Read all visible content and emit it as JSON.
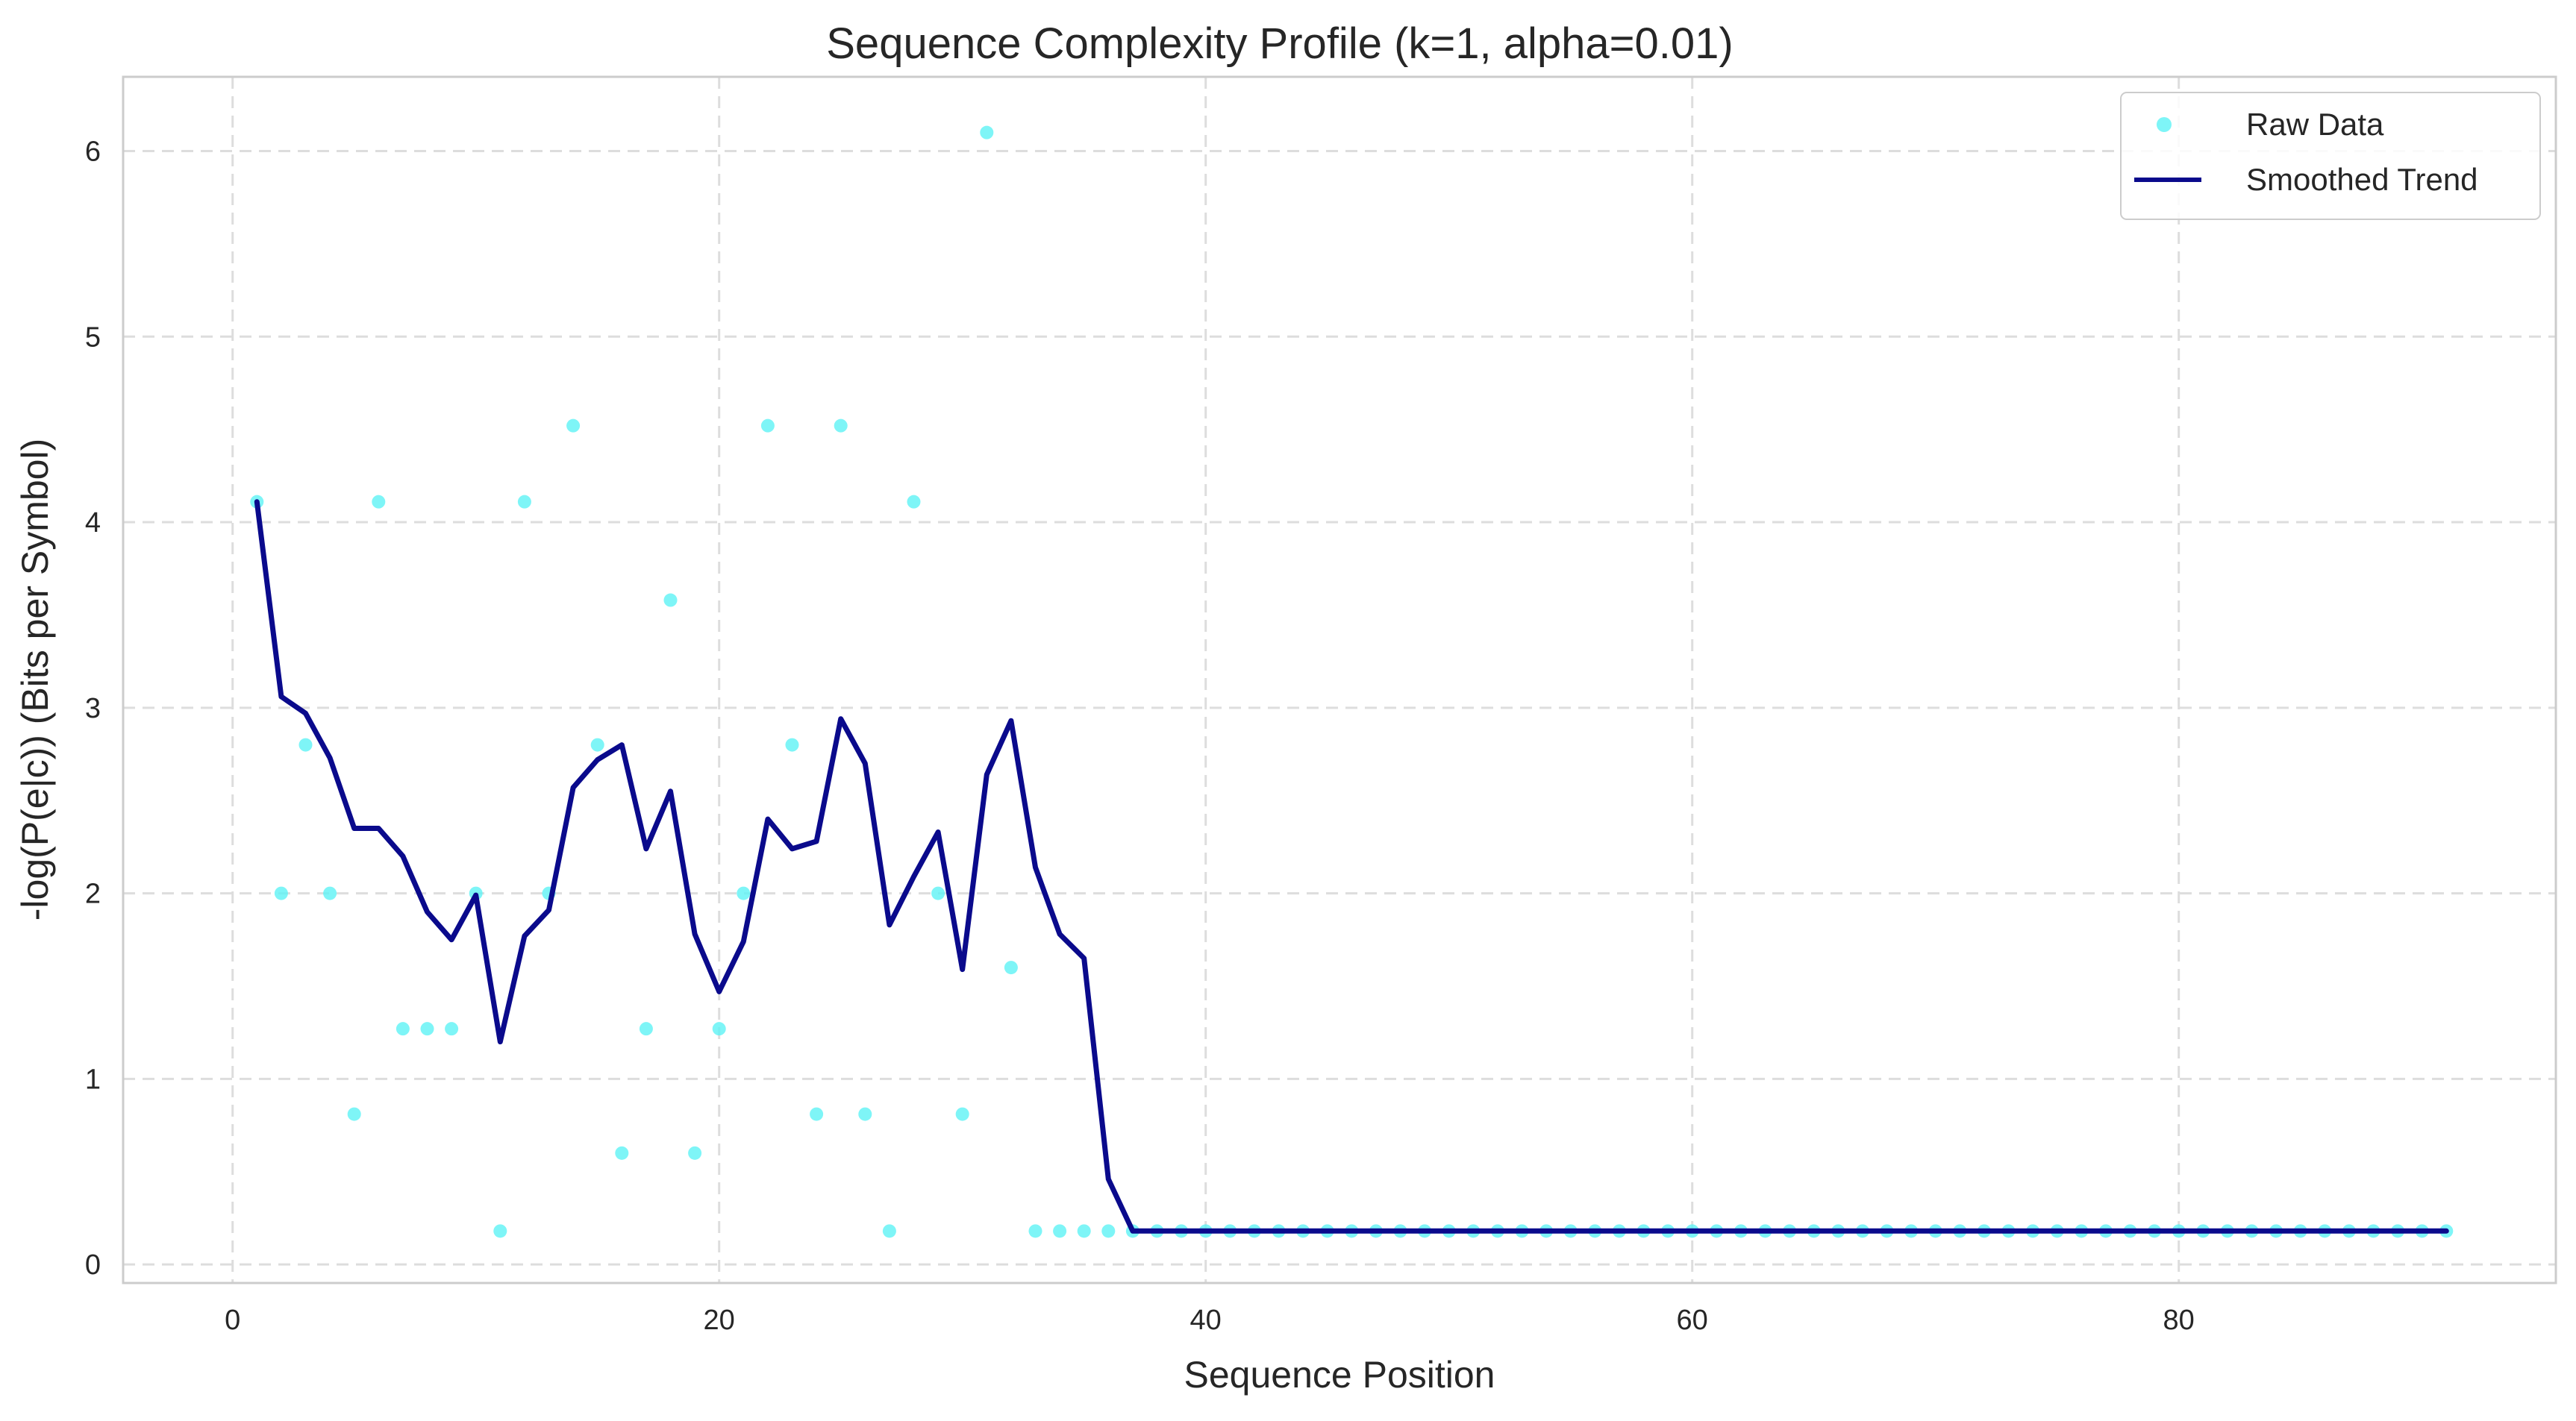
{
  "chart_data": {
    "type": "scatter",
    "title": "Sequence Complexity Profile (k=1, alpha=0.01)",
    "xlabel": "Sequence Position",
    "ylabel": "-log(P(e|c)) (Bits per Symbol)",
    "xlim": [
      -4.5,
      95.5
    ],
    "ylim": [
      -0.1,
      6.4
    ],
    "xticks": [
      0,
      20,
      40,
      60,
      80
    ],
    "yticks": [
      0,
      1,
      2,
      3,
      4,
      5,
      6
    ],
    "grid": true,
    "legend_position": "top-right",
    "colors": {
      "raw": "#5ef3f5",
      "smooth": "#0a0a8c",
      "grid": "#dddddd",
      "frame": "#cccccc"
    },
    "series": [
      {
        "name": "Raw Data",
        "kind": "scatter",
        "x": [
          1,
          2,
          3,
          4,
          5,
          6,
          7,
          8,
          9,
          10,
          11,
          12,
          13,
          14,
          15,
          16,
          17,
          18,
          19,
          20,
          21,
          22,
          23,
          24,
          25,
          26,
          27,
          28,
          29,
          30,
          31,
          32,
          33,
          34,
          35,
          36,
          37,
          38,
          39,
          40,
          41,
          42,
          43,
          44,
          45,
          46,
          47,
          48,
          49,
          50,
          51,
          52,
          53,
          54,
          55,
          56,
          57,
          58,
          59,
          60,
          61,
          62,
          63,
          64,
          65,
          66,
          67,
          68,
          69,
          70,
          71,
          72,
          73,
          74,
          75,
          76,
          77,
          78,
          79,
          80,
          81,
          82,
          83,
          84,
          85,
          86,
          87,
          88,
          89,
          90,
          91
        ],
        "y": [
          4.11,
          2.0,
          2.8,
          2.0,
          0.81,
          4.11,
          1.27,
          1.27,
          1.27,
          2.0,
          0.18,
          4.11,
          2.0,
          4.52,
          2.8,
          0.6,
          1.27,
          3.58,
          0.6,
          1.27,
          2.0,
          4.52,
          2.8,
          0.81,
          4.52,
          0.81,
          0.18,
          4.11,
          2.0,
          0.81,
          6.1,
          1.6,
          0.18,
          0.18,
          0.18,
          0.18,
          0.18,
          0.18,
          0.18,
          0.18,
          0.18,
          0.18,
          0.18,
          0.18,
          0.18,
          0.18,
          0.18,
          0.18,
          0.18,
          0.18,
          0.18,
          0.18,
          0.18,
          0.18,
          0.18,
          0.18,
          0.18,
          0.18,
          0.18,
          0.18,
          0.18,
          0.18,
          0.18,
          0.18,
          0.18,
          0.18,
          0.18,
          0.18,
          0.18,
          0.18,
          0.18,
          0.18,
          0.18,
          0.18,
          0.18,
          0.18,
          0.18,
          0.18,
          0.18,
          0.18,
          0.18,
          0.18,
          0.18,
          0.18,
          0.18,
          0.18,
          0.18,
          0.18,
          0.18,
          0.18,
          0.18
        ]
      },
      {
        "name": "Smoothed Trend",
        "kind": "line",
        "x": [
          1,
          2,
          3,
          4,
          5,
          6,
          7,
          8,
          9,
          10,
          11,
          12,
          13,
          14,
          15,
          16,
          17,
          18,
          19,
          20,
          21,
          22,
          23,
          24,
          25,
          26,
          27,
          28,
          29,
          30,
          31,
          32,
          33,
          34,
          35,
          36,
          37,
          38,
          39,
          40,
          41,
          42,
          43,
          44,
          45,
          46,
          47,
          48,
          49,
          50,
          51,
          52,
          53,
          54,
          55,
          56,
          57,
          58,
          59,
          60,
          61,
          62,
          63,
          64,
          65,
          66,
          67,
          68,
          69,
          70,
          71,
          72,
          73,
          74,
          75,
          76,
          77,
          78,
          79,
          80,
          81,
          82,
          83,
          84,
          85,
          86,
          87,
          88,
          89,
          90,
          91
        ],
        "y": [
          4.11,
          3.06,
          2.97,
          2.73,
          2.35,
          2.35,
          2.2,
          1.9,
          1.75,
          1.99,
          1.2,
          1.77,
          1.91,
          2.57,
          2.72,
          2.8,
          2.24,
          2.55,
          1.78,
          1.47,
          1.74,
          2.4,
          2.24,
          2.28,
          2.94,
          2.7,
          1.83,
          2.09,
          2.33,
          1.59,
          2.64,
          2.93,
          2.14,
          1.78,
          1.65,
          0.46,
          0.18,
          0.18,
          0.18,
          0.18,
          0.18,
          0.18,
          0.18,
          0.18,
          0.18,
          0.18,
          0.18,
          0.18,
          0.18,
          0.18,
          0.18,
          0.18,
          0.18,
          0.18,
          0.18,
          0.18,
          0.18,
          0.18,
          0.18,
          0.18,
          0.18,
          0.18,
          0.18,
          0.18,
          0.18,
          0.18,
          0.18,
          0.18,
          0.18,
          0.18,
          0.18,
          0.18,
          0.18,
          0.18,
          0.18,
          0.18,
          0.18,
          0.18,
          0.18,
          0.18,
          0.18,
          0.18,
          0.18,
          0.18,
          0.18,
          0.18,
          0.18,
          0.18,
          0.18,
          0.18,
          0.18
        ]
      }
    ]
  }
}
